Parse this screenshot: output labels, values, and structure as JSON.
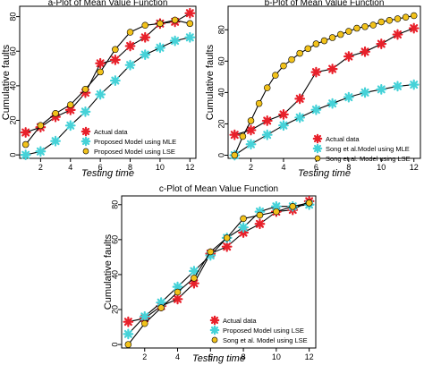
{
  "chart_data": [
    {
      "type": "line",
      "title": "a-Plot of Mean Value Function",
      "xlabel": "Testing time",
      "ylabel": "Cumulative faults",
      "xlim": [
        0.6,
        12.4
      ],
      "ylim": [
        -2,
        86
      ],
      "x": [
        1,
        2,
        3,
        4,
        5,
        6,
        7,
        8,
        9,
        10,
        11,
        12
      ],
      "xticks": [
        "2",
        "4",
        "6",
        "8",
        "10",
        "12"
      ],
      "yticks": [
        "0",
        "20",
        "40",
        "60",
        "80"
      ],
      "legend_position": "bottom-right",
      "series": [
        {
          "name": "Actual data",
          "marker": "star",
          "color": "#e8202a",
          "values": [
            13,
            16,
            22,
            26,
            36,
            53,
            55,
            63,
            68,
            76,
            77,
            82
          ]
        },
        {
          "name": "Proposed Model using MLE",
          "marker": "star",
          "color": "#45d2d8",
          "values": [
            0,
            2,
            8,
            17,
            25,
            35,
            43,
            52,
            58,
            62,
            66,
            68
          ]
        },
        {
          "name": "Proposed Model using LSE",
          "marker": "circle",
          "color": "#f2c21a",
          "values": [
            6,
            17,
            24,
            29,
            38,
            48,
            61,
            71,
            75,
            76,
            78,
            76
          ]
        }
      ]
    },
    {
      "type": "line",
      "title": "b-Plot of Mean Value Function",
      "xlabel": "Testing time",
      "ylabel": "Cumulative faults",
      "xlim": [
        0.6,
        12.4
      ],
      "ylim": [
        -2,
        95
      ],
      "x": [
        1,
        1.5,
        2,
        2.5,
        3,
        3.5,
        4,
        4.5,
        5,
        5.5,
        6,
        6.5,
        7,
        7.5,
        8,
        8.5,
        9,
        9.5,
        10,
        10.5,
        11,
        11.5,
        12
      ],
      "xticks": [
        "2",
        "4",
        "6",
        "8",
        "10",
        "12"
      ],
      "yticks": [
        "0",
        "20",
        "40",
        "60",
        "80"
      ],
      "legend_position": "bottom-right",
      "series": [
        {
          "name": "Actual data",
          "marker": "star",
          "color": "#e8202a",
          "values": [
            13,
            null,
            16,
            null,
            22,
            null,
            26,
            null,
            36,
            null,
            53,
            null,
            55,
            null,
            63,
            null,
            66,
            null,
            71,
            null,
            77,
            null,
            81
          ]
        },
        {
          "name": "Song et al.Model using MLE",
          "marker": "star",
          "color": "#45d2d8",
          "values": [
            0,
            null,
            7,
            null,
            13,
            null,
            19,
            null,
            24,
            null,
            29,
            null,
            33,
            null,
            37,
            null,
            40,
            null,
            42,
            null,
            44,
            null,
            45
          ]
        },
        {
          "name": "Song et al. Model using LSE",
          "marker": "circle",
          "color": "#f2c21a",
          "values": [
            0,
            12,
            22,
            33,
            43,
            51,
            57,
            61,
            65,
            68,
            71,
            73,
            75,
            77,
            79,
            81,
            82,
            83,
            85,
            86,
            87,
            88,
            89
          ]
        }
      ]
    },
    {
      "type": "line",
      "title": "c-Plot of Mean Value Function",
      "xlabel": "Testing time",
      "ylabel": "Cumulative faults",
      "xlim": [
        0.6,
        12.4
      ],
      "ylim": [
        -2,
        85
      ],
      "x": [
        1,
        2,
        3,
        4,
        5,
        6,
        7,
        8,
        9,
        10,
        11,
        12
      ],
      "xticks": [
        "2",
        "4",
        "6",
        "8",
        "10",
        "12"
      ],
      "yticks": [
        "0",
        "20",
        "40",
        "60",
        "80"
      ],
      "legend_position": "bottom-left",
      "series": [
        {
          "name": "Actual data",
          "marker": "star",
          "color": "#e8202a",
          "values": [
            13,
            15,
            22,
            26,
            35,
            52,
            56,
            64,
            69,
            76,
            77,
            82
          ]
        },
        {
          "name": "Proposed Model using LSE",
          "marker": "star",
          "color": "#45d2d8",
          "values": [
            6,
            16,
            24,
            33,
            42,
            51,
            61,
            67,
            76,
            79,
            79,
            80
          ]
        },
        {
          "name": "Song et al. Model using LSE",
          "marker": "circle",
          "color": "#f2c21a",
          "values": [
            0,
            12,
            21,
            30,
            38,
            53,
            61,
            72,
            74,
            76,
            79,
            81
          ]
        }
      ]
    }
  ]
}
